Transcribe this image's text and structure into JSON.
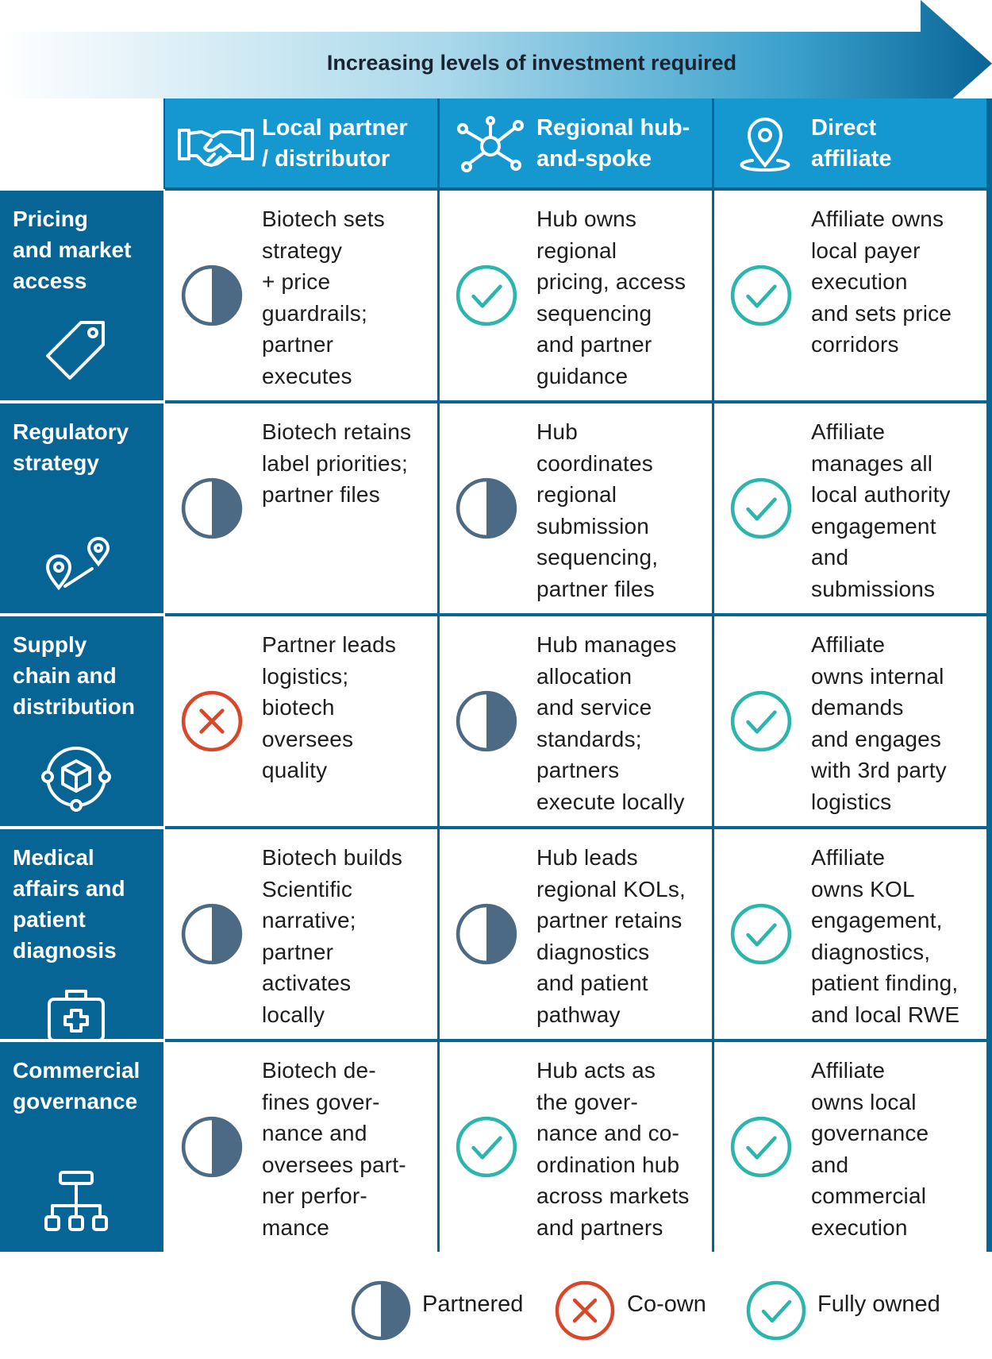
{
  "colors": {
    "column_header": "#1598cf",
    "row_header": "#076596",
    "grid_lines": "#076596",
    "partnered": "#4d6a85",
    "co_own": "#d9472b",
    "fully_owned": "#2bb5ac"
  },
  "banner": {
    "label": "Increasing levels of investment required"
  },
  "columns": [
    {
      "title": "Local partner\n/ distributor",
      "icon": "handshake-icon"
    },
    {
      "title": "Regional hub-\nand-spoke",
      "icon": "hub-network-icon"
    },
    {
      "title": "Direct\naffiliate",
      "icon": "location-pin-icon"
    }
  ],
  "rows": [
    {
      "title": "Pricing\nand market\naccess",
      "icon": "price-tag-icon",
      "cells": [
        {
          "status": "partnered",
          "text": "Biotech sets\nstrategy\n+ price\nguardrails;\npartner\nexecutes"
        },
        {
          "status": "fully-owned",
          "text": "Hub owns\nregional\npricing, access\nsequencing\nand partner\nguidance"
        },
        {
          "status": "fully-owned",
          "text": "Affiliate owns\nlocal payer\nexecution\nand sets price\ncorridors"
        }
      ]
    },
    {
      "title": "Regulatory\nstrategy",
      "icon": "route-pins-icon",
      "cells": [
        {
          "status": "partnered",
          "text": "Biotech retains\nlabel priorities;\npartner files"
        },
        {
          "status": "partnered",
          "text": "Hub\ncoordinates\nregional\nsubmission\nsequencing,\npartner files"
        },
        {
          "status": "fully-owned",
          "text": "Affiliate\nmanages all\nlocal authority\nengagement\nand\nsubmissions"
        }
      ]
    },
    {
      "title": "Supply\nchain and\ndistribution",
      "icon": "package-network-icon",
      "cells": [
        {
          "status": "co-own",
          "text": "Partner leads\nlogistics;\nbiotech\noversees\nquality"
        },
        {
          "status": "partnered",
          "text": "Hub manages\nallocation\nand service\nstandards;\npartners\nexecute locally"
        },
        {
          "status": "fully-owned",
          "text": "Affiliate\nowns internal\ndemands\nand engages\nwith 3rd party\nlogistics"
        }
      ]
    },
    {
      "title": "Medical\naffairs and\npatient\ndiagnosis",
      "icon": "medical-kit-icon",
      "cells": [
        {
          "status": "partnered",
          "text": "Biotech builds\nScientific\nnarrative;\npartner\nactivates\nlocally"
        },
        {
          "status": "partnered",
          "text": "Hub leads\nregional KOLs,\npartner retains\ndiagnostics\nand patient\npathway"
        },
        {
          "status": "fully-owned",
          "text": "Affiliate\nowns KOL\nengagement,\ndiagnostics,\npatient finding,\nand local RWE"
        }
      ]
    },
    {
      "title": "Commercial\ngovernance",
      "icon": "org-chart-icon",
      "cells": [
        {
          "status": "partnered",
          "text": "Biotech de-\nfines gover-\nnance and\noversees part-\nner perfor-\nmance"
        },
        {
          "status": "fully-owned",
          "text": "Hub acts as\nthe gover-\nnance and co-\nordination hub\nacross markets\nand partners"
        },
        {
          "status": "fully-owned",
          "text": "Affiliate\nowns local\ngovernance\nand\ncommercial\nexecution"
        }
      ]
    }
  ],
  "legend": [
    {
      "status": "partnered",
      "label": "Partnered"
    },
    {
      "status": "co-own",
      "label": "Co-own"
    },
    {
      "status": "fully-owned",
      "label": "Fully owned"
    }
  ]
}
